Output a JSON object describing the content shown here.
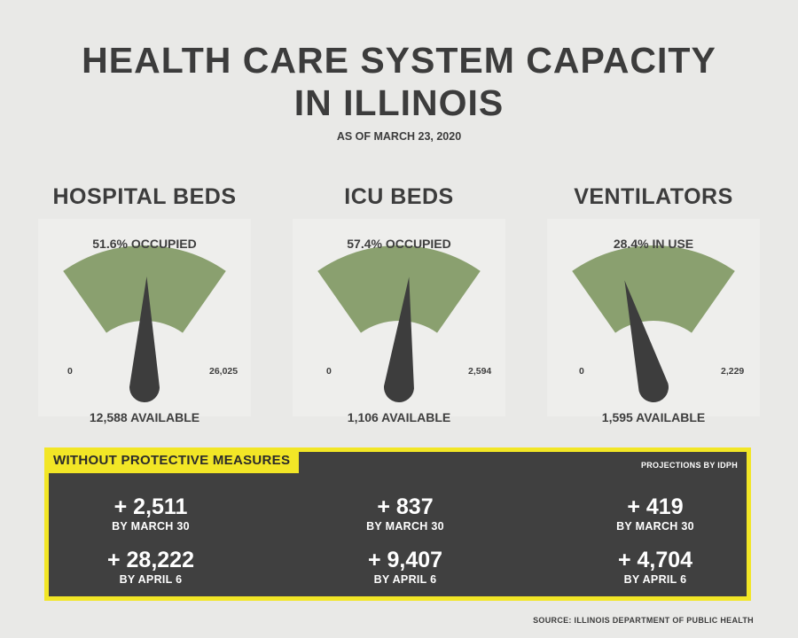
{
  "title_line1": "HEALTH CARE SYSTEM CAPACITY",
  "title_line2": "IN ILLINOIS",
  "as_of": "AS OF MARCH 23, 2020",
  "colors": {
    "gauge_fill": "#8aa06f",
    "needle": "#3d3d3d",
    "accent_yellow": "#f2e626",
    "panel_dark": "#404040"
  },
  "chart_data": [
    {
      "type": "gauge",
      "title": "HOSPITAL BEDS",
      "status_label": "51.6% OCCUPIED",
      "value_pct": 51.6,
      "min_label": "0",
      "max_label": "26,025",
      "available_label": "12,588 AVAILABLE"
    },
    {
      "type": "gauge",
      "title": "ICU BEDS",
      "status_label": "57.4% OCCUPIED",
      "value_pct": 57.4,
      "min_label": "0",
      "max_label": "2,594",
      "available_label": "1,106 AVAILABLE"
    },
    {
      "type": "gauge",
      "title": "VENTILATORS",
      "status_label": "28.4% IN USE",
      "value_pct": 28.4,
      "min_label": "0",
      "max_label": "2,229",
      "available_label": "1,595 AVAILABLE"
    }
  ],
  "projections": {
    "header": "WITHOUT PROTECTIVE MEASURES",
    "source_note": "PROJECTIONS BY IDPH",
    "columns": [
      {
        "entries": [
          {
            "value": "+ 2,511",
            "date": "BY MARCH 30"
          },
          {
            "value": "+ 28,222",
            "date": "BY APRIL 6"
          }
        ]
      },
      {
        "entries": [
          {
            "value": "+ 837",
            "date": "BY MARCH 30"
          },
          {
            "value": "+ 9,407",
            "date": "BY APRIL 6"
          }
        ]
      },
      {
        "entries": [
          {
            "value": "+ 419",
            "date": "BY MARCH 30"
          },
          {
            "value": "+ 4,704",
            "date": "BY APRIL 6"
          }
        ]
      }
    ]
  },
  "source": "SOURCE: ILLINOIS DEPARTMENT OF PUBLIC HEALTH"
}
